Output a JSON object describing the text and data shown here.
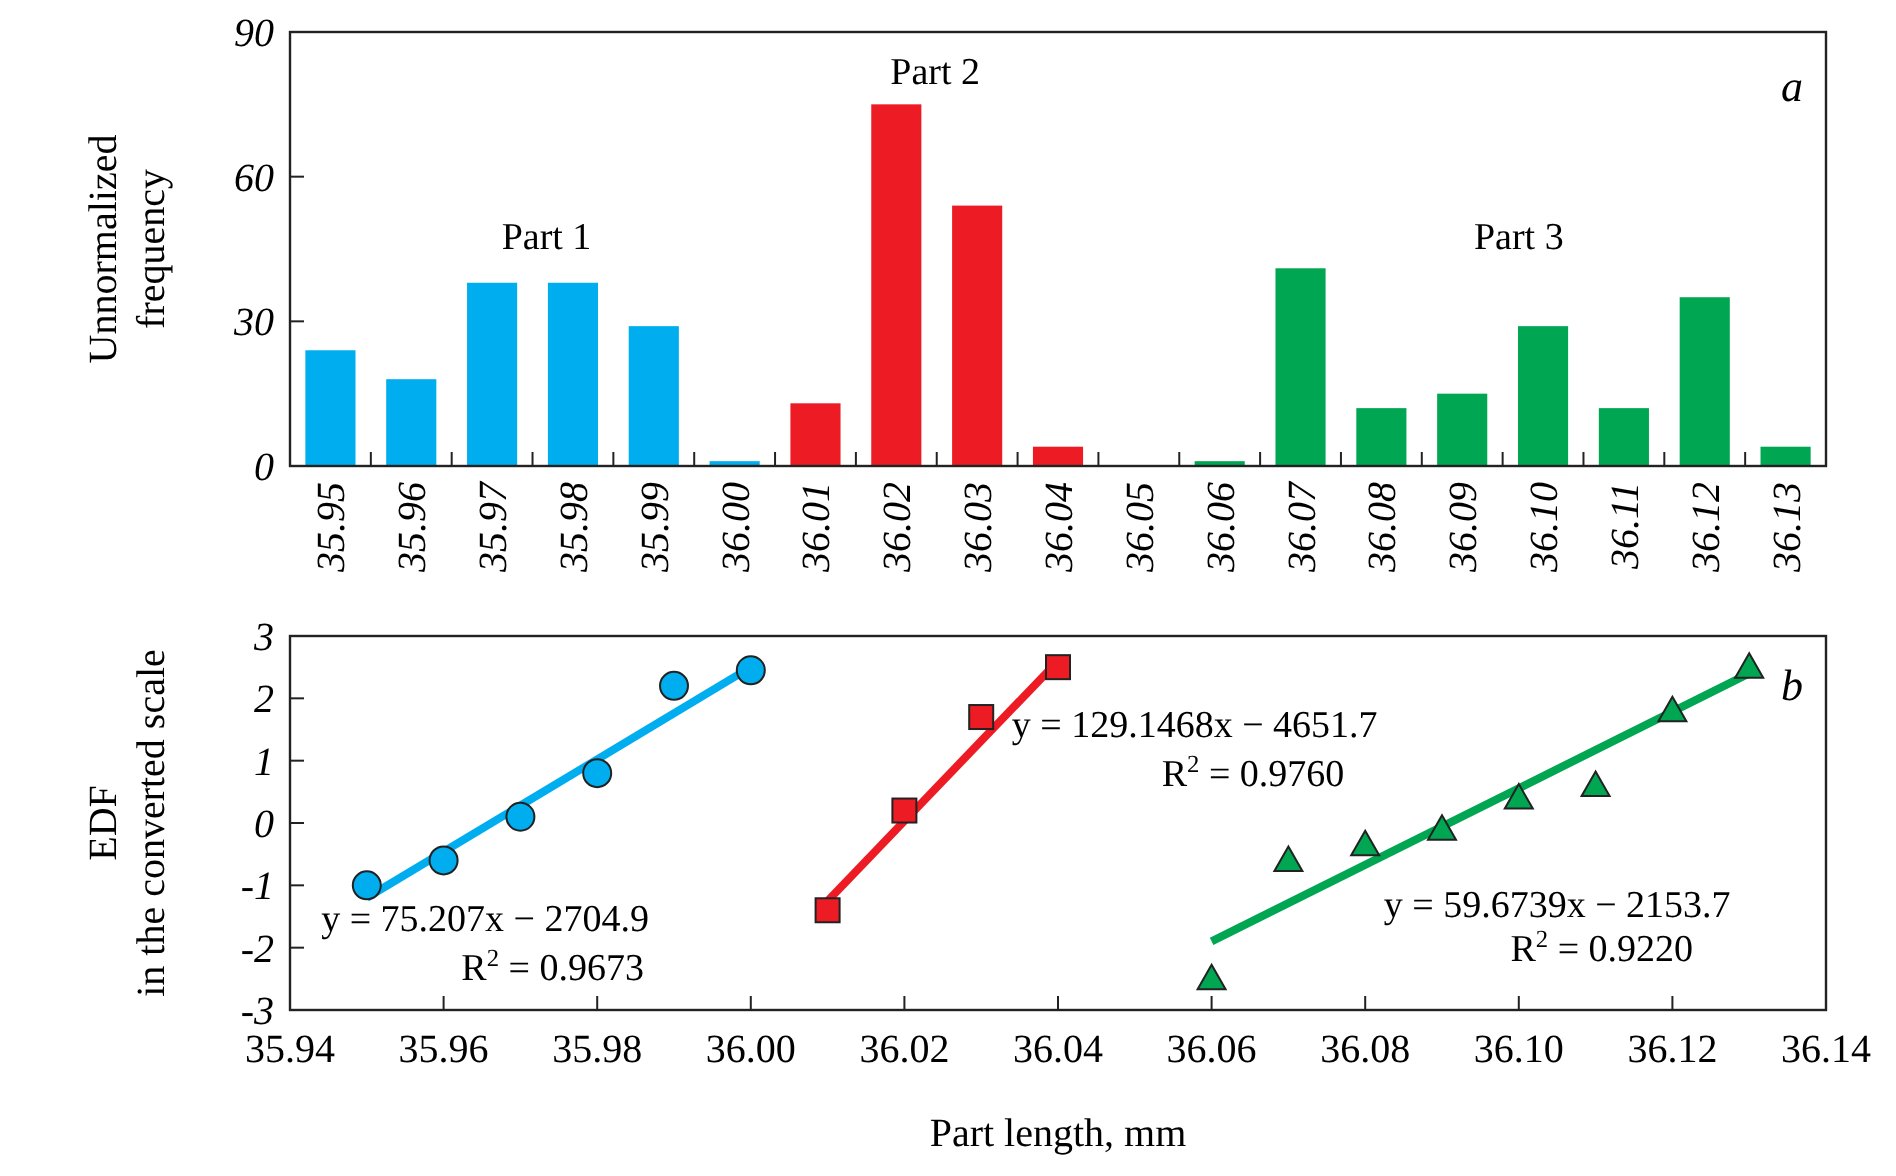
{
  "chart_data": [
    {
      "type": "bar",
      "ylabel": "Unnormalized\nfrequency",
      "categories": [
        "35.95",
        "35.96",
        "35.97",
        "35.98",
        "35.99",
        "36.00",
        "36.01",
        "36.02",
        "36.03",
        "36.04",
        "36.05",
        "36.06",
        "36.07",
        "36.08",
        "36.09",
        "36.10",
        "36.11",
        "36.12",
        "36.13"
      ],
      "values": [
        24,
        18,
        38,
        38,
        29,
        1,
        13,
        75,
        54,
        4,
        0,
        1,
        41,
        12,
        15,
        29,
        12,
        35,
        4
      ],
      "colors": [
        "#00aeef",
        "#00aeef",
        "#00aeef",
        "#00aeef",
        "#00aeef",
        "#00aeef",
        "#ed1c24",
        "#ed1c24",
        "#ed1c24",
        "#ed1c24",
        "#00a651",
        "#00a651",
        "#00a651",
        "#00a651",
        "#00a651",
        "#00a651",
        "#00a651",
        "#00a651",
        "#00a651"
      ],
      "ylim": [
        0,
        90
      ],
      "yticks": [
        0,
        30,
        60,
        90
      ],
      "grid": false,
      "annotations": [
        "Part 1",
        "Part 2",
        "Part 3",
        "a"
      ]
    },
    {
      "type": "scatter",
      "xlabel": "Part length, mm",
      "ylabel": "EDF\nin the converted scale",
      "xlim": [
        35.94,
        36.14
      ],
      "ylim": [
        -3,
        3
      ],
      "xticks": [
        35.94,
        35.96,
        35.98,
        {
          "value": 36,
          "label": "36.00"
        },
        36.02,
        36.04,
        36.06,
        36.08,
        {
          "value": 36.1,
          "label": "36.10"
        },
        36.12,
        36.14
      ],
      "yticks": [
        -3,
        -2,
        -1,
        0,
        1,
        2,
        3
      ],
      "grid": false,
      "series": [
        {
          "type": "scatter",
          "marker": "circle",
          "color": "#00aeef",
          "x": [
            35.95,
            35.96,
            35.97,
            35.98,
            35.99,
            36.0
          ],
          "values": [
            -1.0,
            -0.6,
            0.1,
            0.8,
            2.2,
            2.45
          ]
        },
        {
          "type": "scatter",
          "marker": "square",
          "color": "#ed1c24",
          "x": [
            36.01,
            36.02,
            36.03,
            36.04
          ],
          "values": [
            -1.4,
            0.2,
            1.7,
            2.5
          ]
        },
        {
          "type": "scatter",
          "marker": "triangle",
          "color": "#00a651",
          "x": [
            36.06,
            36.07,
            36.08,
            36.09,
            36.1,
            36.11,
            36.12,
            36.13
          ],
          "values": [
            -2.5,
            -0.6,
            -0.35,
            -0.1,
            0.4,
            0.6,
            1.8,
            2.5
          ]
        },
        {
          "type": "line",
          "marker": "none",
          "color": "#00aeef",
          "x": [
            35.95,
            36.0
          ],
          "values": [
            -1.2,
            2.5
          ]
        },
        {
          "type": "line",
          "marker": "none",
          "color": "#ed1c24",
          "x": [
            36.01,
            36.04
          ],
          "values": [
            -1.25,
            2.6
          ]
        },
        {
          "type": "line",
          "marker": "none",
          "color": "#00a651",
          "x": [
            36.06,
            36.13
          ],
          "values": [
            -1.9,
            2.4
          ]
        }
      ],
      "annotations": [
        "y = 75.207x − 2704.9",
        "R$^{2}$ = 0.9673",
        "y = 129.1468x − 4651.7",
        "R$^{2}$ = 0.9760",
        "y = 59.6739x − 2153.7",
        "R$^{2}$ = 0.9220",
        "b"
      ]
    }
  ]
}
